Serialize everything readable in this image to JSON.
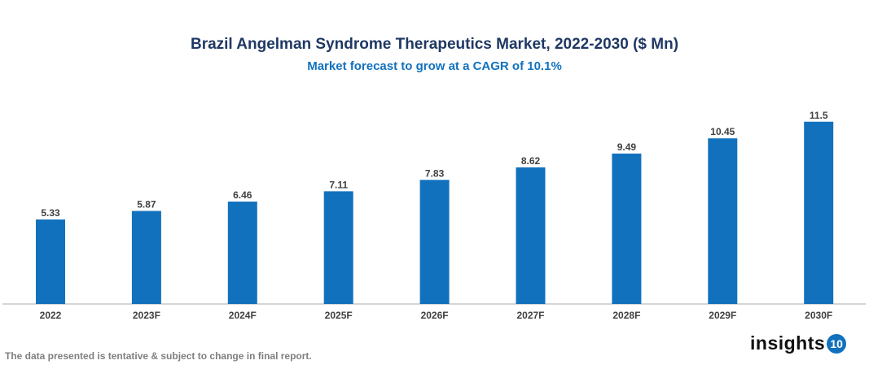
{
  "chart_data": {
    "type": "bar",
    "title": "Brazil Angelman Syndrome Therapeutics Market, 2022-2030 ($ Mn)",
    "subtitle": "Market forecast to grow at a CAGR of 10.1%",
    "categories": [
      "2022",
      "2023F",
      "2024F",
      "2025F",
      "2026F",
      "2027F",
      "2028F",
      "2029F",
      "2030F"
    ],
    "values": [
      5.33,
      5.87,
      6.46,
      7.11,
      7.83,
      8.62,
      9.49,
      10.45,
      11.5
    ],
    "data_labels": [
      "5.33",
      "5.87",
      "6.46",
      "7.11",
      "7.83",
      "8.62",
      "9.49",
      "10.45",
      "11.5"
    ],
    "xlabel": "",
    "ylabel": "",
    "ylim": [
      0,
      12
    ],
    "grid": false,
    "bar_color": "#1271bd"
  },
  "footer": {
    "note": "The data presented is tentative & subject to change in final report."
  },
  "logo": {
    "text": "insights",
    "badge": "10"
  }
}
